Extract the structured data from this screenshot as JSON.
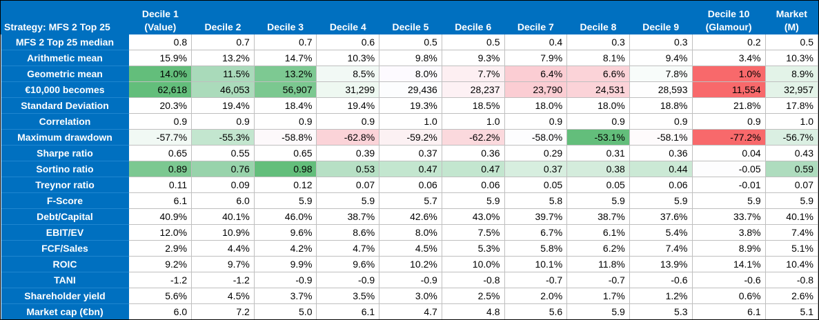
{
  "table": {
    "corner_label": "Strategy: MFS 2 Top 25",
    "columns": [
      {
        "line1": "Decile 1",
        "line2": "(Value)"
      },
      {
        "line1": "",
        "line2": "Decile 2"
      },
      {
        "line1": "",
        "line2": "Decile 3"
      },
      {
        "line1": "",
        "line2": "Decile 4"
      },
      {
        "line1": "",
        "line2": "Decile 5"
      },
      {
        "line1": "",
        "line2": "Decile 6"
      },
      {
        "line1": "",
        "line2": "Decile 7"
      },
      {
        "line1": "",
        "line2": "Decile 8"
      },
      {
        "line1": "",
        "line2": "Decile 9"
      },
      {
        "line1": "Decile 10",
        "line2": "(Glamour)"
      },
      {
        "line1": "Market",
        "line2": "(M)"
      }
    ],
    "rows": [
      {
        "label": "MFS 2 Top 25 median",
        "values": [
          "0.8",
          "0.7",
          "0.7",
          "0.6",
          "0.5",
          "0.5",
          "0.4",
          "0.3",
          "0.3",
          "0.2",
          "0.5"
        ]
      },
      {
        "label": "Arithmetic mean",
        "values": [
          "15.9%",
          "13.2%",
          "14.7%",
          "10.3%",
          "9.8%",
          "9.3%",
          "7.9%",
          "8.1%",
          "9.4%",
          "3.4%",
          "10.3%"
        ]
      },
      {
        "label": "Geometric mean",
        "values": [
          "14.0%",
          "11.5%",
          "13.2%",
          "8.5%",
          "8.0%",
          "7.7%",
          "6.4%",
          "6.6%",
          "7.8%",
          "1.0%",
          "8.9%"
        ],
        "colors": [
          "#63be7b",
          "#a9daba",
          "#7dc992",
          "#f2f9f5",
          "#fdfaff",
          "#fdeff2",
          "#fbcdd3",
          "#fbd3d8",
          "#f8fcfa",
          "#f8696b",
          "#e3f3e8"
        ]
      },
      {
        "label": "€10,000 becomes",
        "values": [
          "62,618",
          "46,053",
          "56,907",
          "31,299",
          "29,436",
          "28,237",
          "23,790",
          "24,531",
          "28,593",
          "11,554",
          "32,957"
        ],
        "colors": [
          "#63be7b",
          "#abdbbb",
          "#7bc890",
          "#eef8f1",
          "#fcfdfe",
          "#fdf1f4",
          "#fbcdd3",
          "#fbd3d8",
          "#fefefe",
          "#f8696b",
          "#e3f3e8"
        ]
      },
      {
        "label": "Standard Deviation",
        "values": [
          "20.3%",
          "19.4%",
          "18.4%",
          "19.4%",
          "19.3%",
          "18.5%",
          "18.0%",
          "18.0%",
          "18.8%",
          "21.8%",
          "17.8%"
        ]
      },
      {
        "label": "Correlation",
        "values": [
          "0.9",
          "0.9",
          "0.9",
          "0.9",
          "1.0",
          "1.0",
          "0.9",
          "0.9",
          "0.9",
          "0.9",
          "1.0"
        ]
      },
      {
        "label": "Maximum drawdown",
        "values": [
          "-57.7%",
          "-55.3%",
          "-58.8%",
          "-62.8%",
          "-59.2%",
          "-62.2%",
          "-58.0%",
          "-53.1%",
          "-58.1%",
          "-77.2%",
          "-56.7%"
        ],
        "colors": [
          "#f1f9f4",
          "#c3e6cf",
          "#fdf9fb",
          "#fbd3d8",
          "#fcf1f3",
          "#fbd9dd",
          "#fdfdfe",
          "#63be7b",
          "#fefbfc",
          "#f8696b",
          "#daefe2"
        ]
      },
      {
        "label": "Sharpe ratio",
        "values": [
          "0.65",
          "0.55",
          "0.65",
          "0.39",
          "0.37",
          "0.36",
          "0.29",
          "0.31",
          "0.36",
          "0.04",
          "0.43"
        ]
      },
      {
        "label": "Sortino ratio",
        "values": [
          "0.89",
          "0.76",
          "0.98",
          "0.53",
          "0.47",
          "0.47",
          "0.37",
          "0.38",
          "0.44",
          "-0.05",
          "0.59"
        ],
        "colors": [
          "#7cc891",
          "#98d3ab",
          "#63be7b",
          "#b7e0c5",
          "#c3e6cf",
          "#c3e6cf",
          "#d7eedf",
          "#d4ecdc",
          "#cbe9d5",
          "#fdfdfe",
          "#aedcbe"
        ]
      },
      {
        "label": "Treynor ratio",
        "values": [
          "0.11",
          "0.09",
          "0.12",
          "0.07",
          "0.06",
          "0.06",
          "0.05",
          "0.05",
          "0.06",
          "-0.01",
          "0.07"
        ]
      },
      {
        "label": "F-Score",
        "values": [
          "6.1",
          "6.0",
          "5.9",
          "5.9",
          "5.7",
          "5.9",
          "5.8",
          "5.9",
          "5.9",
          "5.9",
          "5.9"
        ]
      },
      {
        "label": "Debt/Capital",
        "values": [
          "40.9%",
          "40.1%",
          "46.0%",
          "38.7%",
          "42.6%",
          "43.0%",
          "39.7%",
          "38.7%",
          "37.6%",
          "33.7%",
          "40.1%"
        ]
      },
      {
        "label": "EBIT/EV",
        "values": [
          "12.0%",
          "10.9%",
          "9.6%",
          "8.6%",
          "8.0%",
          "7.5%",
          "6.7%",
          "6.1%",
          "5.4%",
          "3.8%",
          "7.4%"
        ]
      },
      {
        "label": "FCF/Sales",
        "values": [
          "2.9%",
          "4.4%",
          "4.2%",
          "4.7%",
          "4.5%",
          "5.3%",
          "5.8%",
          "6.2%",
          "7.4%",
          "8.9%",
          "5.1%"
        ]
      },
      {
        "label": "ROIC",
        "values": [
          "9.2%",
          "9.7%",
          "9.9%",
          "9.6%",
          "10.2%",
          "10.0%",
          "10.1%",
          "11.8%",
          "13.9%",
          "14.1%",
          "10.4%"
        ]
      },
      {
        "label": "TANI",
        "values": [
          "-1.2",
          "-1.2",
          "-0.9",
          "-0.9",
          "-0.9",
          "-0.8",
          "-0.7",
          "-0.7",
          "-0.6",
          "-0.6",
          "-0.8"
        ]
      },
      {
        "label": "Shareholder yield",
        "values": [
          "5.6%",
          "4.5%",
          "3.7%",
          "3.5%",
          "3.0%",
          "2.5%",
          "2.0%",
          "1.7%",
          "1.2%",
          "0.6%",
          "2.6%"
        ]
      },
      {
        "label": "Market cap (€bn)",
        "values": [
          "6.0",
          "7.2",
          "5.0",
          "6.1",
          "4.7",
          "4.8",
          "5.6",
          "5.9",
          "5.3",
          "6.1",
          "5.1"
        ]
      }
    ],
    "colors": {
      "header_bg": "#0070c0",
      "header_text": "#ffffff",
      "grid": "#bfbfbf"
    }
  }
}
